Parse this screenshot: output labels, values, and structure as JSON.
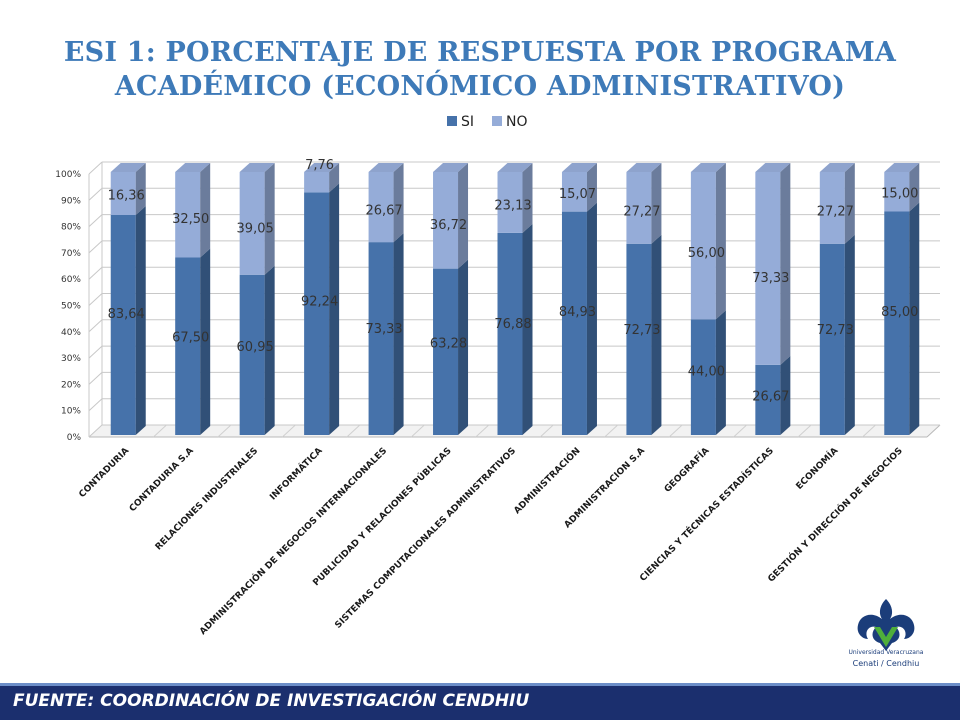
{
  "title_lines": [
    "ESI  1: PORCENTAJE DE RESPUESTA POR PROGRAMA",
    "ACADÉMICO (ECONÓMICO ADMINISTRATIVO)"
  ],
  "footer": {
    "source": "FUENTE:  COORDINACIÓN DE   INVESTIGACIÓN CENDHIU"
  },
  "logo": {
    "line1": "Universidad Veracruzana",
    "line2": "Cenati / Cendhiu"
  },
  "colors": {
    "si": "#4672aa",
    "no": "#95acd8",
    "title": "#3e7ab8",
    "footer_bg": "#1b2f6e"
  },
  "chart_data": {
    "type": "bar",
    "stacked": true,
    "percent_stacked": true,
    "categories": [
      "CONTADURIA",
      "CONTADURIA S.A",
      "RELACIONES INDUSTRIALES",
      "INFORMÁTICA",
      "ADMINISTRACIÓN DE NEGOCIOS INTERNACIONALES",
      "PUBLICIDAD Y RELACIONES PÚBLICAS",
      "SISTEMAS COMPUTACIONALES ADMINISTRATIVOS",
      "ADMINISTRACIÓN",
      "ADMINISTRACION S.A",
      "GEOGRAFÍA",
      "CIENCIAS Y TÉCNICAS ESTADÍSTICAS",
      "ECONOMÍA",
      "GESTIÓN Y DIRECCIÓN DE NEGOCIOS"
    ],
    "series": [
      {
        "name": "SI",
        "values": [
          83.64,
          67.5,
          60.95,
          92.24,
          73.33,
          63.28,
          76.88,
          84.93,
          72.73,
          44.0,
          26.67,
          72.73,
          85.0
        ],
        "labels": [
          "83,64",
          "67,50",
          "60,95",
          "92,24",
          "73,33",
          "63,28",
          "76,88",
          "84,93",
          "72,73",
          "44,00",
          "26,67",
          "72,73",
          "85,00"
        ]
      },
      {
        "name": "NO",
        "values": [
          16.36,
          32.5,
          39.05,
          7.76,
          26.67,
          36.72,
          23.13,
          15.07,
          27.27,
          56.0,
          73.33,
          27.27,
          15.0
        ],
        "labels": [
          "16,36",
          "32,50",
          "39,05",
          "7,76",
          "26,67",
          "36,72",
          "23,13",
          "15,07",
          "27,27",
          "56,00",
          "73,33",
          "27,27",
          "15,00"
        ]
      }
    ],
    "y_ticks": [
      "0%",
      "10%",
      "20%",
      "30%",
      "40%",
      "50%",
      "60%",
      "70%",
      "80%",
      "90%",
      "100%"
    ],
    "ylim": [
      0,
      100
    ],
    "legend": [
      "SI",
      "NO"
    ],
    "legend_position": "top",
    "grid": true,
    "style": "3d"
  }
}
